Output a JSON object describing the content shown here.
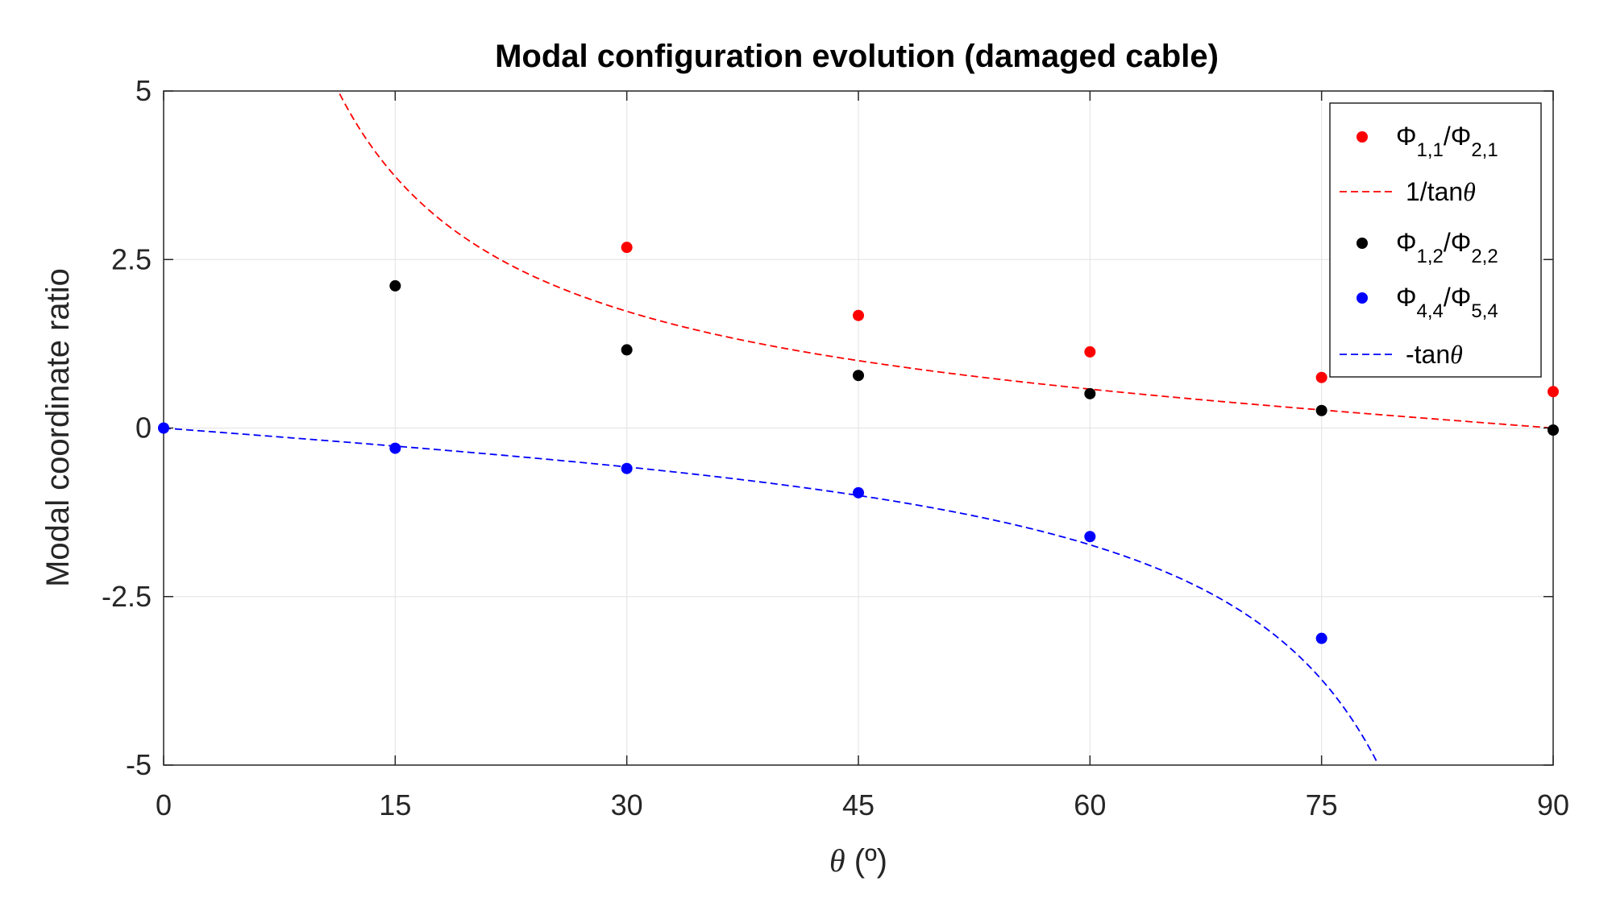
{
  "chart_data": {
    "type": "scatter",
    "title": "Modal configuration evolution (damaged cable)",
    "xlabel_symbol": "θ",
    "xlabel_unit": " (º)",
    "ylabel": "Modal coordinate ratio",
    "xlim": [
      0,
      90
    ],
    "ylim": [
      -5,
      5
    ],
    "xticks": [
      0,
      15,
      30,
      45,
      60,
      75,
      90
    ],
    "xtick_labels": [
      "0",
      "15",
      "30",
      "45",
      "60",
      "75",
      "90"
    ],
    "yticks": [
      5,
      2.5,
      0,
      -2.5,
      -5
    ],
    "ytick_labels": [
      "5",
      "2.5",
      "0",
      "-2.5",
      "-5"
    ],
    "grid": true,
    "legend_position": "top-right",
    "colors": {
      "red": "#ff0000",
      "black": "#000000",
      "blue": "#0000ff"
    },
    "series": [
      {
        "kind": "points",
        "color": "#ff0000",
        "legend": {
          "prefix": "Φ",
          "sub1": "1,1",
          "sep": "/Φ",
          "sub2": "2,1"
        },
        "x": [
          30,
          45,
          60,
          75,
          90
        ],
        "y": [
          2.68,
          1.67,
          1.13,
          0.75,
          0.54
        ]
      },
      {
        "kind": "curve",
        "function": "1/tan",
        "color": "#ff0000",
        "legend": {
          "text": "1/tan",
          "symbol": "θ"
        }
      },
      {
        "kind": "points",
        "color": "#000000",
        "legend": {
          "prefix": "Φ",
          "sub1": "1,2",
          "sep": "/Φ",
          "sub2": "2,2"
        },
        "x": [
          15,
          30,
          45,
          60,
          75,
          90
        ],
        "y": [
          2.11,
          1.16,
          0.78,
          0.51,
          0.26,
          -0.03
        ]
      },
      {
        "kind": "points",
        "color": "#0000ff",
        "legend": {
          "prefix": "Φ",
          "sub1": "4,4",
          "sep": "/Φ",
          "sub2": "5,4"
        },
        "x": [
          0,
          15,
          30,
          45,
          60,
          75
        ],
        "y": [
          0.0,
          -0.3,
          -0.6,
          -0.96,
          -1.61,
          -3.12
        ]
      },
      {
        "kind": "curve",
        "function": "-tan",
        "color": "#0000ff",
        "legend": {
          "text": "-tan",
          "symbol": "θ"
        }
      }
    ]
  }
}
